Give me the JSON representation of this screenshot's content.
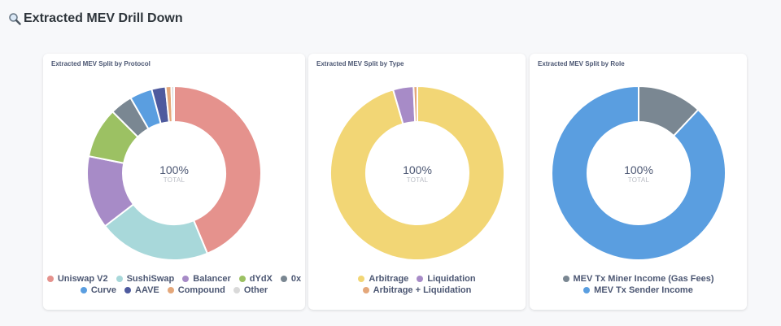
{
  "page": {
    "title": "Extracted MEV Drill Down",
    "title_icon": "magnifier-icon"
  },
  "chart_data": [
    {
      "type": "pie",
      "title": "Extracted MEV Split by Protocol",
      "center_value": "100%",
      "center_label": "TOTAL",
      "categories": [
        "Uniswap V2",
        "SushiSwap",
        "Balancer",
        "dYdX",
        "0x",
        "Curve",
        "AAVE",
        "Compound",
        "Other"
      ],
      "values": [
        42,
        20,
        13,
        9,
        4,
        4,
        2.5,
        1,
        0.5
      ],
      "colors": [
        "#e5928d",
        "#a8d8da",
        "#a78bc7",
        "#9cc163",
        "#7a8792",
        "#5a9ee0",
        "#4e5a9e",
        "#e4a77a",
        "#d9d9d9"
      ],
      "legend_rows": [
        [
          0,
          1,
          2,
          3,
          4
        ],
        [
          5,
          6,
          7,
          8
        ]
      ]
    },
    {
      "type": "pie",
      "title": "Extracted MEV Split by Type",
      "center_value": "100%",
      "center_label": "TOTAL",
      "categories": [
        "Arbitrage",
        "Liquidation",
        "Arbitrage + Liquidation"
      ],
      "values": [
        95.5,
        3.8,
        0.7
      ],
      "colors": [
        "#f2d675",
        "#a78bc7",
        "#e4a77a"
      ],
      "legend_rows": [
        [
          0,
          1
        ],
        [
          2
        ]
      ]
    },
    {
      "type": "pie",
      "title": "Extracted MEV Split by Role",
      "center_value": "100%",
      "center_label": "TOTAL",
      "categories": [
        "MEV Tx Miner Income (Gas Fees)",
        "MEV Tx Sender Income"
      ],
      "values": [
        12,
        88
      ],
      "colors": [
        "#7a8792",
        "#5a9ee0"
      ],
      "legend_rows": [
        [
          0
        ],
        [
          1
        ]
      ]
    }
  ]
}
